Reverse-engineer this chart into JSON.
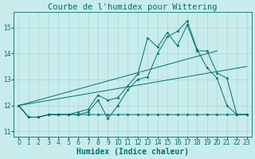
{
  "title": "Courbe de l'humidex pour Wittering",
  "xlabel": "Humidex (Indice chaleur)",
  "bg_color": "#c8ecec",
  "grid_color": "#a0d0d0",
  "line_color": "#007070",
  "xlim": [
    -0.5,
    23.5
  ],
  "ylim": [
    10.8,
    15.6
  ],
  "yticks": [
    11,
    12,
    13,
    14,
    15
  ],
  "xticks": [
    0,
    1,
    2,
    3,
    4,
    5,
    6,
    7,
    8,
    9,
    10,
    11,
    12,
    13,
    14,
    15,
    16,
    17,
    18,
    19,
    20,
    21,
    22,
    23
  ],
  "line1_x": [
    0,
    1,
    2,
    3,
    4,
    5,
    6,
    7,
    8,
    9,
    10,
    11,
    12,
    13,
    14,
    15,
    16,
    17,
    18,
    19,
    20,
    21,
    22,
    23
  ],
  "line1_y": [
    12.0,
    11.55,
    11.55,
    11.65,
    11.65,
    11.65,
    11.65,
    11.75,
    12.2,
    11.5,
    12.0,
    12.6,
    13.0,
    13.1,
    14.0,
    14.65,
    14.85,
    15.25,
    14.15,
    13.45,
    13.05,
    12.0,
    11.65,
    11.65
  ],
  "line2_x": [
    0,
    1,
    2,
    3,
    4,
    5,
    6,
    7,
    8,
    9,
    10,
    11,
    12,
    13,
    14,
    15,
    16,
    17,
    18,
    19,
    20,
    21,
    22,
    23
  ],
  "line2_y": [
    12.0,
    11.55,
    11.55,
    11.65,
    11.65,
    11.65,
    11.75,
    11.85,
    12.4,
    12.2,
    12.3,
    12.75,
    13.2,
    14.6,
    14.25,
    14.8,
    14.3,
    15.1,
    14.1,
    14.1,
    13.25,
    13.05,
    11.65,
    11.65
  ],
  "line3_x": [
    0,
    1,
    2,
    3,
    4,
    5,
    6,
    7,
    8,
    9,
    10,
    11,
    12,
    13,
    14,
    15,
    16,
    17,
    18,
    19,
    20,
    21,
    22,
    23
  ],
  "line3_y": [
    12.0,
    11.55,
    11.55,
    11.65,
    11.65,
    11.65,
    11.65,
    11.65,
    11.65,
    11.65,
    11.65,
    11.65,
    11.65,
    11.65,
    11.65,
    11.65,
    11.65,
    11.65,
    11.65,
    11.65,
    11.65,
    11.65,
    11.65,
    11.65
  ],
  "title_fontsize": 7.5,
  "axis_fontsize": 7,
  "tick_fontsize": 5.5
}
